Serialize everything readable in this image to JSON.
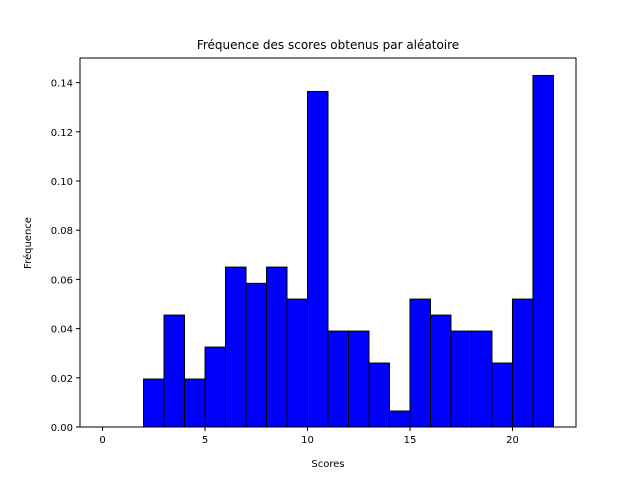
{
  "chart_data": {
    "type": "histogram",
    "title": "Fréquence des scores obtenus par aléatoire",
    "xlabel": "Scores",
    "ylabel": "Fréquence",
    "bins": [
      0,
      1,
      2,
      3,
      4,
      5,
      6,
      7,
      8,
      9,
      10,
      11,
      12,
      13,
      14,
      15,
      16,
      17,
      18,
      19,
      20,
      21,
      22
    ],
    "values": [
      0,
      0,
      0.0195,
      0.0455,
      0.0195,
      0.0325,
      0.065,
      0.0584,
      0.065,
      0.052,
      0.1364,
      0.039,
      0.039,
      0.026,
      0.0065,
      0.052,
      0.0455,
      0.039,
      0.039,
      0.026,
      0.052,
      0.1429
    ],
    "color": "#0000ff",
    "edgecolor": "#000000",
    "xlim": [
      -1.1,
      23.1
    ],
    "xticks": [
      0,
      5,
      10,
      15,
      20
    ],
    "ylim": [
      0,
      0.15
    ],
    "yticks": [
      {
        "value": 0,
        "label": "0.00"
      },
      {
        "value": 0.02,
        "label": "0.02"
      },
      {
        "value": 0.04,
        "label": "0.04"
      },
      {
        "value": 0.06,
        "label": "0.06"
      },
      {
        "value": 0.08,
        "label": "0.08"
      },
      {
        "value": 0.1,
        "label": "0.10"
      },
      {
        "value": 0.12,
        "label": "0.12"
      },
      {
        "value": 0.14,
        "label": "0.14"
      }
    ]
  }
}
